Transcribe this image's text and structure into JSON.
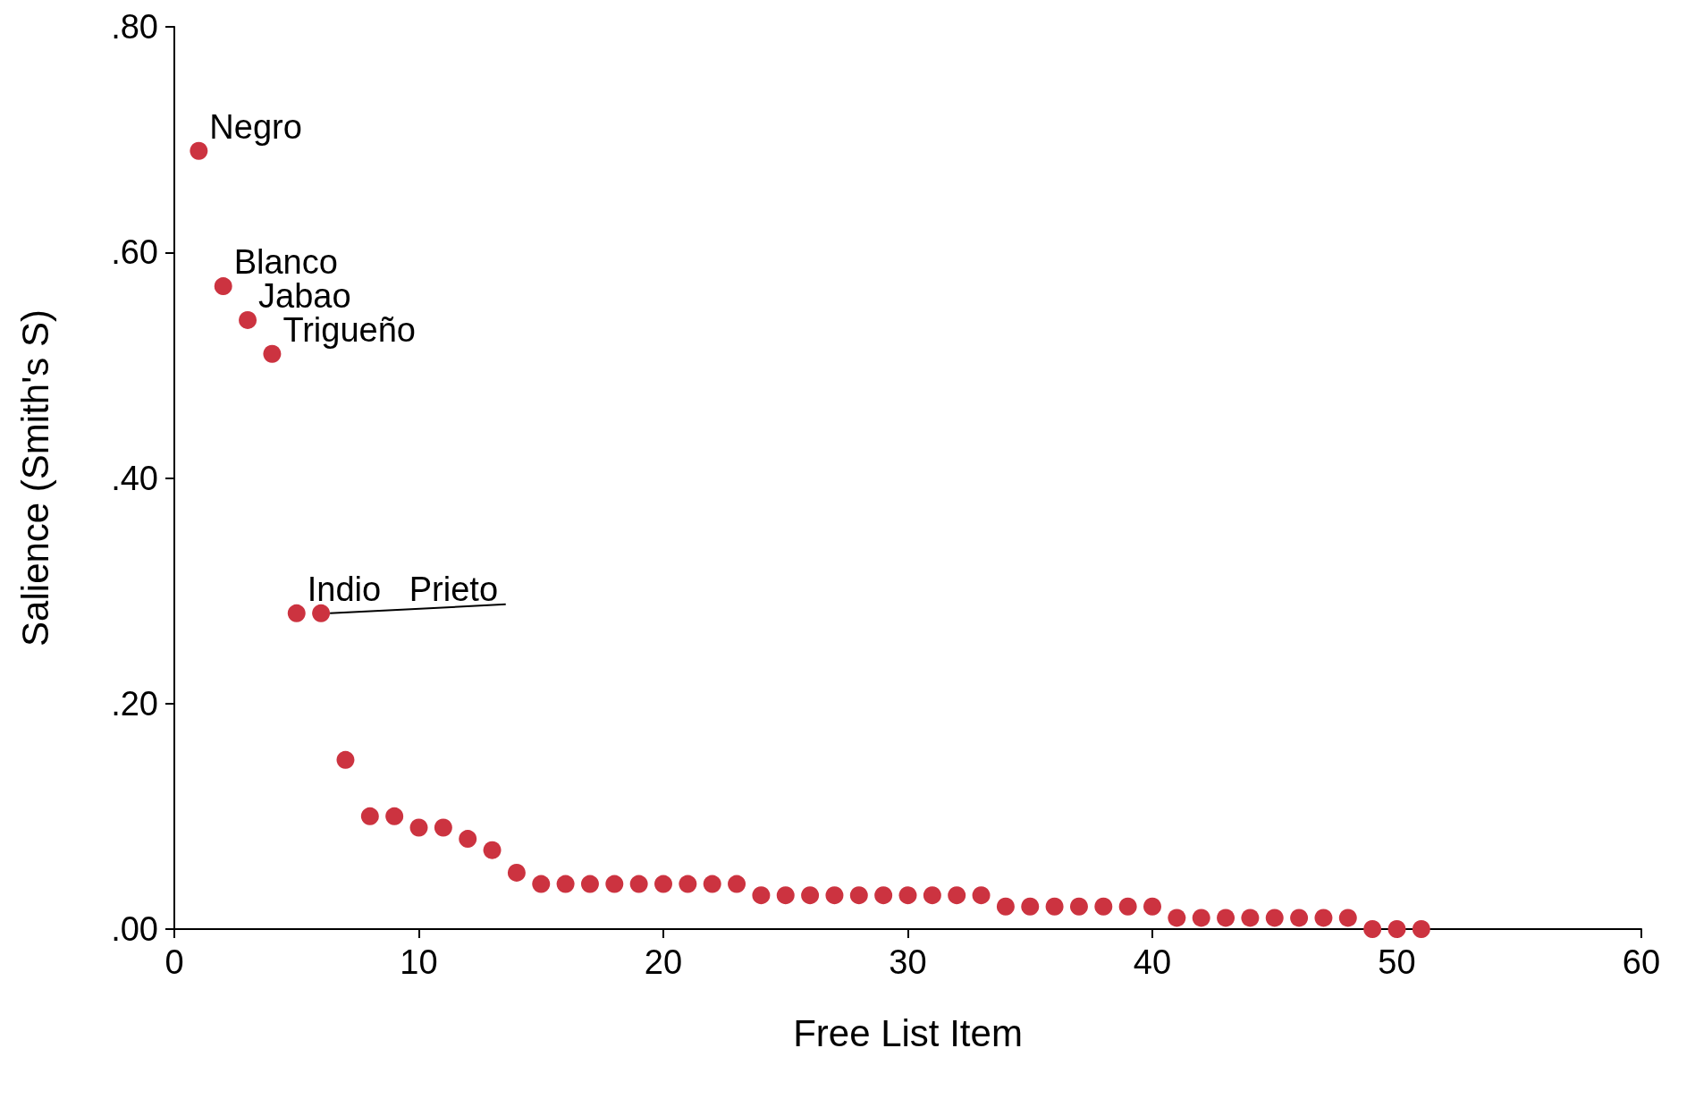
{
  "chart_data": {
    "type": "scatter",
    "xlabel": "Free List Item",
    "ylabel": "Salience (Smith's S)",
    "x": [
      1,
      2,
      3,
      4,
      5,
      6,
      7,
      8,
      9,
      10,
      11,
      12,
      13,
      14,
      15,
      16,
      17,
      18,
      19,
      20,
      21,
      22,
      23,
      24,
      25,
      26,
      27,
      28,
      29,
      30,
      31,
      32,
      33,
      34,
      35,
      36,
      37,
      38,
      39,
      40,
      41,
      42,
      43,
      44,
      45,
      46,
      47,
      48,
      49,
      50,
      51
    ],
    "values": [
      0.69,
      0.57,
      0.54,
      0.51,
      0.28,
      0.28,
      0.15,
      0.1,
      0.1,
      0.09,
      0.09,
      0.08,
      0.07,
      0.05,
      0.04,
      0.04,
      0.04,
      0.04,
      0.04,
      0.04,
      0.04,
      0.04,
      0.04,
      0.03,
      0.03,
      0.03,
      0.03,
      0.03,
      0.03,
      0.03,
      0.03,
      0.03,
      0.03,
      0.02,
      0.02,
      0.02,
      0.02,
      0.02,
      0.02,
      0.02,
      0.01,
      0.01,
      0.01,
      0.01,
      0.01,
      0.01,
      0.01,
      0.01,
      0.0,
      0.0,
      0.0
    ],
    "color": "#cc3340",
    "marker": "circle",
    "grid": false,
    "xlim": [
      0,
      60
    ],
    "xticks": [
      0,
      10,
      20,
      30,
      40,
      50,
      60
    ],
    "ylim": [
      0,
      0.8
    ],
    "yticks": [
      {
        "value": 0,
        "label": ".00"
      },
      {
        "value": 0.2,
        "label": ".20"
      },
      {
        "value": 0.4,
        "label": ".40"
      },
      {
        "value": 0.6,
        "label": ".60"
      },
      {
        "value": 0.8,
        "label": ".80"
      }
    ],
    "annotations": [
      {
        "text": "Negro",
        "x": 1,
        "y": 0.69
      },
      {
        "text": "Blanco",
        "x": 2,
        "y": 0.57
      },
      {
        "text": "Jabao",
        "x": 3,
        "y": 0.54
      },
      {
        "text": "Trigueño",
        "x": 4,
        "y": 0.51
      },
      {
        "text": "Indio",
        "x": 5,
        "y": 0.28
      },
      {
        "text": "Prieto",
        "x": 6,
        "y": 0.28
      }
    ]
  }
}
